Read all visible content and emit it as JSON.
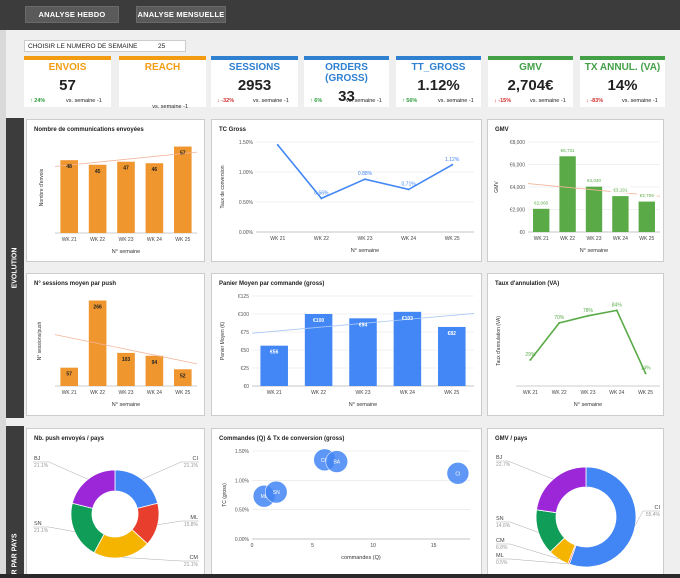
{
  "topbar": {
    "btn_weekly": "ANALYSE HEBDO",
    "btn_monthly": "ANALYSE MENSUELLE"
  },
  "week_selector": {
    "label": "CHOISIR LE NUMERO DE SEMAINE",
    "value": "25"
  },
  "kpis": [
    {
      "title": "ENVOIS",
      "value": "57",
      "delta": "24%",
      "dir": "up",
      "suffix": "vs. semaine -1",
      "color": "#f39c12"
    },
    {
      "title": "REACH",
      "value": "",
      "delta": "",
      "dir": "",
      "suffix": "vs. semaine -1",
      "color": "#f39c12"
    },
    {
      "title": "SESSIONS",
      "value": "2953",
      "delta": "-32%",
      "dir": "down",
      "suffix": "vs. semaine -1",
      "color": "#2f80d1"
    },
    {
      "title": "ORDERS (GROSS)",
      "value": "33",
      "delta": "6%",
      "dir": "up",
      "suffix": "vs. semaine -1",
      "color": "#2f80d1"
    },
    {
      "title": "TT_GROSS",
      "value": "1.12%",
      "delta": "56%",
      "dir": "up",
      "suffix": "vs. semaine -1",
      "color": "#2f80d1"
    },
    {
      "title": "GMV",
      "value": "2,704€",
      "delta": "-15%",
      "dir": "down",
      "suffix": "vs. semaine -1",
      "color": "#43a047"
    },
    {
      "title": "TX ANNUL. (VA)",
      "value": "14%",
      "delta": "-83%",
      "dir": "down",
      "suffix": "vs. semaine -1",
      "color": "#43a047"
    }
  ],
  "sections": {
    "evolution": "EVOLUTION",
    "par_pays": "R PAR PAYS"
  },
  "colors": {
    "orange": "#f0962e",
    "blue": "#4287f5",
    "green": "#5aab48",
    "trend_orange": "#f4b49a",
    "trend_blue": "#a9c8f5"
  },
  "chart_data": [
    {
      "id": "envois",
      "type": "bar",
      "title": "Nombre de communications envoyées",
      "xlabel": "N° semaine",
      "ylabel": "Nombre d'envois",
      "categories": [
        "WK 21",
        "WK 22",
        "WK 23",
        "WK 24",
        "WK 25"
      ],
      "values": [
        48,
        45,
        47,
        46,
        57
      ],
      "labels": [
        "48",
        "45",
        "47",
        "46",
        "57"
      ],
      "ylim": [
        0,
        60
      ],
      "trendline": true,
      "color": "orange",
      "yticks": []
    },
    {
      "id": "tc",
      "type": "line",
      "title": "TC Gross",
      "xlabel": "N° semaine",
      "ylabel": "Taux de conversion",
      "categories": [
        "WK 21",
        "WK 22",
        "WK 23",
        "WK 24",
        "WK 25"
      ],
      "values": [
        1.45,
        0.56,
        0.88,
        0.71,
        1.12
      ],
      "labels": [
        "",
        "0.56%",
        "0.88%",
        "0.71%",
        "1.12%"
      ],
      "ylim": [
        0,
        1.5
      ],
      "yticks": [
        0,
        0.5,
        1.0,
        1.5
      ],
      "ytick_labels": [
        "0.00%",
        "0.50%",
        "1.00%",
        "1.50%"
      ],
      "color": "blue"
    },
    {
      "id": "gmv",
      "type": "bar",
      "title": "GMV",
      "xlabel": "N° semaine",
      "ylabel": "GMV",
      "categories": [
        "WK 21",
        "WK 22",
        "WK 23",
        "WK 24",
        "WK 25"
      ],
      "values": [
        2060,
        6731,
        4030,
        3191,
        2704
      ],
      "labels": [
        "€2,060",
        "€6,731",
        "€4,030",
        "€3,191",
        "€2,704"
      ],
      "ylim": [
        0,
        8000
      ],
      "yticks": [
        0,
        2000,
        4000,
        6000,
        8000
      ],
      "ytick_labels": [
        "€0",
        "€2,000",
        "€4,000",
        "€6,000",
        "€8,000"
      ],
      "trendline": true,
      "color": "green"
    },
    {
      "id": "sessions",
      "type": "bar",
      "title": "N° sessions moyen par push",
      "xlabel": "N° semaine",
      "ylabel": "N° sessions/push",
      "categories": [
        "WK 21",
        "WK 22",
        "WK 23",
        "WK 24",
        "WK 25"
      ],
      "values": [
        57,
        266,
        103,
        94,
        52
      ],
      "labels": [
        "57",
        "266",
        "103",
        "94",
        "52"
      ],
      "ylim": [
        0,
        280
      ],
      "trendline": true,
      "color": "orange",
      "yticks": []
    },
    {
      "id": "panier",
      "type": "bar",
      "title": "Panier Moyen par commande (gross)",
      "xlabel": "N° semaine",
      "ylabel": "Panier Moyen (€)",
      "categories": [
        "WK 21",
        "WK 22",
        "WK 23",
        "WK 24",
        "WK 25"
      ],
      "values": [
        56,
        100,
        94,
        103,
        82
      ],
      "labels": [
        "€56",
        "€100",
        "€94",
        "€103",
        "€82"
      ],
      "ylim": [
        0,
        125
      ],
      "yticks": [
        0,
        25,
        50,
        75,
        100,
        125
      ],
      "ytick_labels": [
        "€0",
        "€25",
        "€50",
        "€75",
        "€100",
        "€125"
      ],
      "trendline": true,
      "color": "blue"
    },
    {
      "id": "annul",
      "type": "line",
      "title": "Taux d'annulation (VA)",
      "xlabel": "N° semaine",
      "ylabel": "Taux d'annulation (VA)",
      "categories": [
        "WK 21",
        "WK 22",
        "WK 23",
        "WK 24",
        "WK 25"
      ],
      "values": [
        29,
        70,
        78,
        84,
        14
      ],
      "labels": [
        "29%",
        "70%",
        "78%",
        "84%",
        "14%"
      ],
      "ylim": [
        0,
        100
      ],
      "color": "green",
      "yticks": []
    },
    {
      "id": "push_pays",
      "type": "pie",
      "title": "Nb. push envoyés / pays",
      "slices": [
        {
          "name": "CI",
          "value": 21.1,
          "label": "21.1%",
          "color": "#4285f4"
        },
        {
          "name": "ML",
          "value": 15.8,
          "label": "15.8%",
          "color": "#e83e2e"
        },
        {
          "name": "CM",
          "value": 21.1,
          "label": "21.1%",
          "color": "#f4b400"
        },
        {
          "name": "SN",
          "value": 21.1,
          "label": "21.1%",
          "color": "#0f9d58"
        },
        {
          "name": "BJ",
          "value": 21.1,
          "label": "21.1%",
          "color": "#9c27d8"
        }
      ]
    },
    {
      "id": "scatter",
      "type": "scatter",
      "title": "Commandes (Q) & Tx de conversion (gross)",
      "xlabel": "commandes (Q)",
      "ylabel": "TC (gross)",
      "xlim": [
        0,
        18
      ],
      "xticks": [
        0,
        5,
        10,
        15
      ],
      "ylim": [
        0,
        1.5
      ],
      "yticks": [
        0,
        0.5,
        1.0,
        1.5
      ],
      "ytick_labels": [
        "0.00%",
        "0.50%",
        "1.00%",
        "1.50%"
      ],
      "points": [
        {
          "label": "ML",
          "x": 1,
          "y": 0.73
        },
        {
          "label": "SN",
          "x": 2,
          "y": 0.8
        },
        {
          "label": "CM",
          "x": 6,
          "y": 1.35
        },
        {
          "label": "BA",
          "x": 7,
          "y": 1.32
        },
        {
          "label": "CI",
          "x": 17,
          "y": 1.12
        }
      ]
    },
    {
      "id": "gmv_pays",
      "type": "pie",
      "title": "GMV / pays",
      "slices": [
        {
          "name": "CI",
          "value": 55.4,
          "label": "55.4%",
          "color": "#4285f4"
        },
        {
          "name": "ML",
          "value": 0.5,
          "label": "0.5%",
          "color": "#e83e2e"
        },
        {
          "name": "CM",
          "value": 6.8,
          "label": "6.8%",
          "color": "#f4b400"
        },
        {
          "name": "SN",
          "value": 14.6,
          "label": "14.6%",
          "color": "#0f9d58"
        },
        {
          "name": "BJ",
          "value": 22.7,
          "label": "22.7%",
          "color": "#9c27d8"
        }
      ]
    }
  ]
}
